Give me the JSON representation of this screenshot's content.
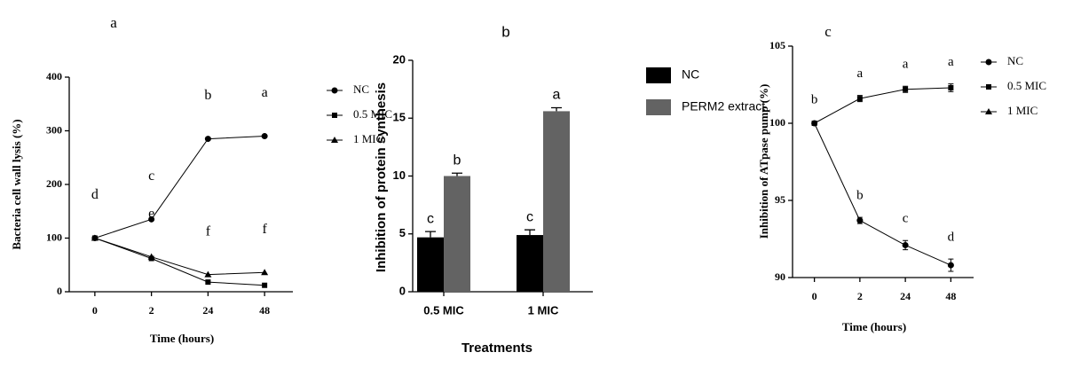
{
  "chart_data": [
    {
      "type": "line",
      "title": "a",
      "xlabel": "Time (hours)",
      "ylabel": "Bacteria cell wall lysis (%)",
      "categories": [
        "0",
        "2",
        "24",
        "48"
      ],
      "ylim": [
        0,
        400
      ],
      "yticks": [
        0,
        100,
        200,
        300,
        400
      ],
      "series": [
        {
          "name": "NC",
          "marker": "circle",
          "color": "#000000",
          "values": [
            100,
            135,
            285,
            290
          ]
        },
        {
          "name": "0.5 MIC",
          "marker": "square",
          "color": "#000000",
          "values": [
            100,
            62,
            18,
            12
          ]
        },
        {
          "name": "1 MIC",
          "marker": "triangle",
          "color": "#000000",
          "values": [
            100,
            65,
            32,
            36
          ]
        }
      ],
      "annotations": [
        {
          "text": "d",
          "series": 0,
          "point": 0
        },
        {
          "text": "c",
          "series": 0,
          "point": 1
        },
        {
          "text": "b",
          "series": 0,
          "point": 2
        },
        {
          "text": "a",
          "series": 0,
          "point": 3
        },
        {
          "text": "e",
          "series": 2,
          "point": 1
        },
        {
          "text": "f",
          "series": 2,
          "point": 2
        },
        {
          "text": "f",
          "series": 2,
          "point": 3
        }
      ]
    },
    {
      "type": "bar",
      "title": "b",
      "xlabel": "Treatments",
      "ylabel": "Inhibition of protein synthesis",
      "categories": [
        "0.5 MIC",
        "1 MIC"
      ],
      "ylim": [
        0,
        20
      ],
      "yticks": [
        0,
        5,
        10,
        15,
        20
      ],
      "series": [
        {
          "name": "NC",
          "color": "#000000",
          "values": [
            4.7,
            4.9
          ],
          "errors": [
            0.5,
            0.45
          ]
        },
        {
          "name": "PERM2 extract",
          "color": "#636363",
          "values": [
            10,
            15.6
          ],
          "errors": [
            0.25,
            0.3
          ]
        }
      ],
      "annotations": [
        {
          "text": "c",
          "series": 0,
          "point": 0
        },
        {
          "text": "b",
          "series": 1,
          "point": 0
        },
        {
          "text": "c",
          "series": 0,
          "point": 1
        },
        {
          "text": "a",
          "series": 1,
          "point": 1
        }
      ]
    },
    {
      "type": "line",
      "title": "c",
      "xlabel": "Time (hours)",
      "ylabel": "Inhibition of ATpase pump (%)",
      "categories": [
        "0",
        "2",
        "24",
        "48"
      ],
      "ylim": [
        90,
        105
      ],
      "yticks": [
        90,
        95,
        100,
        105
      ],
      "series": [
        {
          "name": "NC",
          "marker": "circle",
          "color": "#000000",
          "values": [
            100,
            93.7,
            92.1,
            90.8
          ],
          "errors": [
            0.1,
            0.2,
            0.3,
            0.4
          ]
        },
        {
          "name": "0.5 MIC",
          "marker": "square",
          "color": "#000000",
          "values": [
            100,
            101.6,
            102.2,
            102.3
          ],
          "errors": [
            0.1,
            0.2,
            0.2,
            0.25
          ]
        },
        {
          "name": "1 MIC",
          "marker": "triangle",
          "color": "#000000",
          "values": [
            null,
            null,
            null,
            null
          ]
        }
      ],
      "annotations": [
        {
          "text": "b",
          "series": 0,
          "point": 0
        },
        {
          "text": "a",
          "series": 1,
          "point": 1
        },
        {
          "text": "a",
          "series": 1,
          "point": 2
        },
        {
          "text": "a",
          "series": 1,
          "point": 3
        },
        {
          "text": "b",
          "series": 0,
          "point": 1
        },
        {
          "text": "c",
          "series": 0,
          "point": 2
        },
        {
          "text": "d",
          "series": 0,
          "point": 3
        }
      ]
    }
  ]
}
